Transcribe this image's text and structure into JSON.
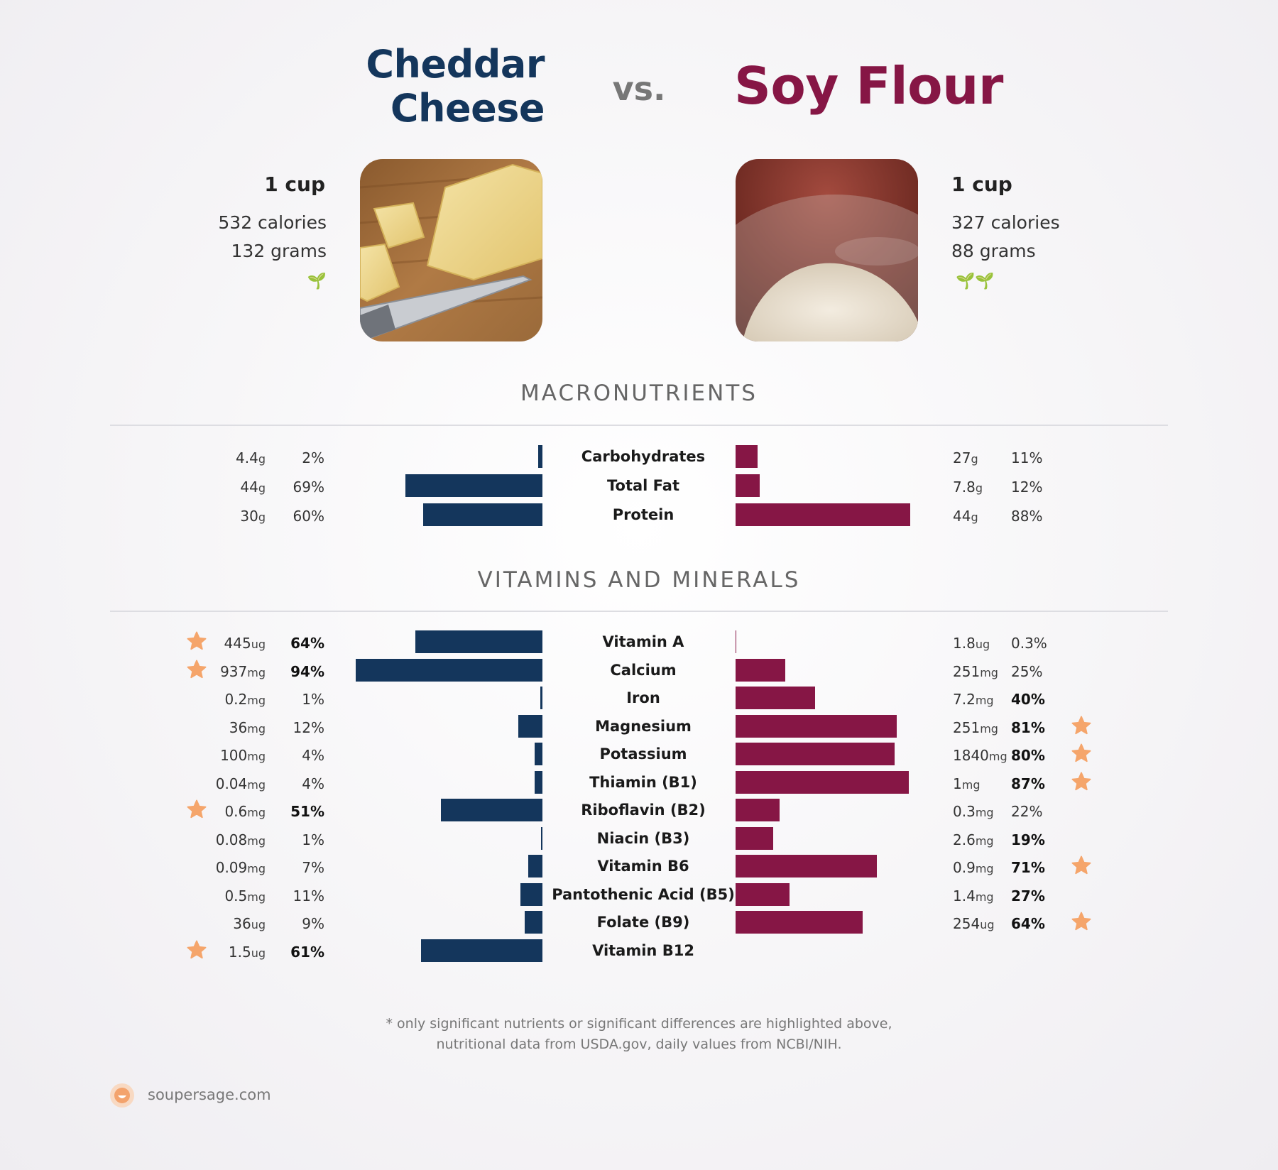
{
  "header": {
    "left_title_line1": "Cheddar",
    "left_title_line2": "Cheese",
    "vs_label": "vs.",
    "right_title": "Soy Flour"
  },
  "left_food": {
    "serving": "1 cup",
    "calories": "532 calories",
    "grams": "132 grams",
    "leaf_icons": "🌱"
  },
  "right_food": {
    "serving": "1 cup",
    "calories": "327 calories",
    "grams": "88 grams",
    "leaf_icons": "🌱🌱"
  },
  "sections": {
    "macros_title": "MACRONUTRIENTS",
    "vitamins_title": "VITAMINS AND MINERALS"
  },
  "colors": {
    "left": "#14365c",
    "right": "#861645",
    "star": "#f5a56b"
  },
  "chart_data": {
    "type": "bar",
    "series": [
      {
        "name": "Cheddar Cheese"
      },
      {
        "name": "Soy Flour"
      }
    ],
    "macronutrients": [
      {
        "name": "Carbohydrates",
        "left_value": "4.4",
        "left_unit": "g",
        "left_pct": "2%",
        "left_num": 2,
        "left_bold": false,
        "left_star": false,
        "right_value": "27",
        "right_unit": "g",
        "right_pct": "11%",
        "right_num": 11,
        "right_bold": false,
        "right_star": false
      },
      {
        "name": "Total Fat",
        "left_value": "44",
        "left_unit": "g",
        "left_pct": "69%",
        "left_num": 69,
        "left_bold": false,
        "left_star": false,
        "right_value": "7.8",
        "right_unit": "g",
        "right_pct": "12%",
        "right_num": 12,
        "right_bold": false,
        "right_star": false
      },
      {
        "name": "Protein",
        "left_value": "30",
        "left_unit": "g",
        "left_pct": "60%",
        "left_num": 60,
        "left_bold": false,
        "left_star": false,
        "right_value": "44",
        "right_unit": "g",
        "right_pct": "88%",
        "right_num": 88,
        "right_bold": false,
        "right_star": false
      }
    ],
    "vitamins": [
      {
        "name": "Vitamin A",
        "left_value": "445",
        "left_unit": "ug",
        "left_pct": "64%",
        "left_num": 64,
        "left_bold": true,
        "left_star": true,
        "right_value": "1.8",
        "right_unit": "ug",
        "right_pct": "0.3%",
        "right_num": 0.3,
        "right_bold": false,
        "right_star": false
      },
      {
        "name": "Calcium",
        "left_value": "937",
        "left_unit": "mg",
        "left_pct": "94%",
        "left_num": 94,
        "left_bold": true,
        "left_star": true,
        "right_value": "251",
        "right_unit": "mg",
        "right_pct": "25%",
        "right_num": 25,
        "right_bold": false,
        "right_star": false
      },
      {
        "name": "Iron",
        "left_value": "0.2",
        "left_unit": "mg",
        "left_pct": "1%",
        "left_num": 1,
        "left_bold": false,
        "left_star": false,
        "right_value": "7.2",
        "right_unit": "mg",
        "right_pct": "40%",
        "right_num": 40,
        "right_bold": true,
        "right_star": false
      },
      {
        "name": "Magnesium",
        "left_value": "36",
        "left_unit": "mg",
        "left_pct": "12%",
        "left_num": 12,
        "left_bold": false,
        "left_star": false,
        "right_value": "251",
        "right_unit": "mg",
        "right_pct": "81%",
        "right_num": 81,
        "right_bold": true,
        "right_star": true
      },
      {
        "name": "Potassium",
        "left_value": "100",
        "left_unit": "mg",
        "left_pct": "4%",
        "left_num": 4,
        "left_bold": false,
        "left_star": false,
        "right_value": "1840",
        "right_unit": "mg",
        "right_pct": "80%",
        "right_num": 80,
        "right_bold": true,
        "right_star": true
      },
      {
        "name": "Thiamin (B1)",
        "left_value": "0.04",
        "left_unit": "mg",
        "left_pct": "4%",
        "left_num": 4,
        "left_bold": false,
        "left_star": false,
        "right_value": "1",
        "right_unit": "mg",
        "right_pct": "87%",
        "right_num": 87,
        "right_bold": true,
        "right_star": true
      },
      {
        "name": "Riboflavin (B2)",
        "left_value": "0.6",
        "left_unit": "mg",
        "left_pct": "51%",
        "left_num": 51,
        "left_bold": true,
        "left_star": true,
        "right_value": "0.3",
        "right_unit": "mg",
        "right_pct": "22%",
        "right_num": 22,
        "right_bold": false,
        "right_star": false
      },
      {
        "name": "Niacin (B3)",
        "left_value": "0.08",
        "left_unit": "mg",
        "left_pct": "1%",
        "left_num": 0.5,
        "left_bold": false,
        "left_star": false,
        "right_value": "2.6",
        "right_unit": "mg",
        "right_pct": "19%",
        "right_num": 19,
        "right_bold": true,
        "right_star": false
      },
      {
        "name": "Vitamin B6",
        "left_value": "0.09",
        "left_unit": "mg",
        "left_pct": "7%",
        "left_num": 7,
        "left_bold": false,
        "left_star": false,
        "right_value": "0.9",
        "right_unit": "mg",
        "right_pct": "71%",
        "right_num": 71,
        "right_bold": true,
        "right_star": true
      },
      {
        "name": "Pantothenic Acid (B5)",
        "left_value": "0.5",
        "left_unit": "mg",
        "left_pct": "11%",
        "left_num": 11,
        "left_bold": false,
        "left_star": false,
        "right_value": "1.4",
        "right_unit": "mg",
        "right_pct": "27%",
        "right_num": 27,
        "right_bold": true,
        "right_star": false
      },
      {
        "name": "Folate (B9)",
        "left_value": "36",
        "left_unit": "ug",
        "left_pct": "9%",
        "left_num": 9,
        "left_bold": false,
        "left_star": false,
        "right_value": "254",
        "right_unit": "ug",
        "right_pct": "64%",
        "right_num": 64,
        "right_bold": true,
        "right_star": true
      },
      {
        "name": "Vitamin B12",
        "left_value": "1.5",
        "left_unit": "ug",
        "left_pct": "61%",
        "left_num": 61,
        "left_bold": true,
        "left_star": true,
        "right_value": "",
        "right_unit": "",
        "right_pct": "",
        "right_num": 0,
        "right_bold": false,
        "right_star": false
      }
    ]
  },
  "footnote": {
    "line1": "* only significant nutrients or significant differences are highlighted above,",
    "line2": "nutritional data from USDA.gov, daily values from NCBI/NIH."
  },
  "brand": {
    "site": "soupersage.com"
  }
}
